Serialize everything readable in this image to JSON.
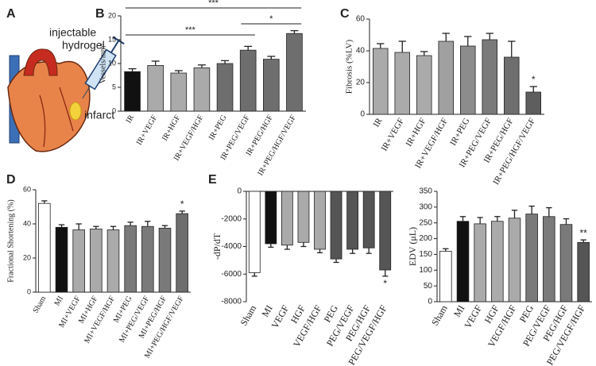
{
  "diagram": {
    "panel": "A",
    "labels": [
      "injectable",
      "hydrogel",
      "infarct"
    ]
  },
  "chart_data": [
    {
      "type": "bar",
      "panel": "B",
      "ylabel": "Vessels/mm²",
      "categories": [
        "IR",
        "IR+VEGF",
        "IR+HGF",
        "IR+VEGF/HGF",
        "IR+PEG",
        "IR+PEG/VEGF",
        "IR+PEG/HGF",
        "IR+PEG/HGF/VEGF"
      ],
      "values": [
        8.3,
        9.6,
        8.0,
        9.1,
        10.0,
        12.8,
        10.9,
        16.3
      ],
      "errors": [
        0.6,
        0.9,
        0.5,
        0.6,
        0.6,
        0.8,
        0.6,
        0.6
      ],
      "colors": [
        "#111111",
        "#aaaaaa",
        "#aaaaaa",
        "#aaaaaa",
        "#6e6e6e",
        "#6e6e6e",
        "#6e6e6e",
        "#6e6e6e"
      ],
      "ylim": [
        0,
        20
      ],
      "yticks": [
        0,
        5,
        10,
        15,
        20
      ],
      "significance": [
        {
          "label": "***",
          "from": "IR",
          "to": "IR+PEG/HGF/VEGF"
        },
        {
          "label": "***",
          "from": "IR",
          "to": "IR+PEG/VEGF"
        },
        {
          "label": "*",
          "from": "IR+PEG/VEGF",
          "to": "IR+PEG/HGF/VEGF"
        }
      ]
    },
    {
      "type": "bar",
      "panel": "C",
      "ylabel": "Fibrosis (%LV)",
      "categories": [
        "IR",
        "IR+VEGF",
        "IR+HGF",
        "IR+VEGF/HGF",
        "IR+PEG",
        "IR+PEG/VEGF",
        "IR+PEG/HGF",
        "IR+PEG/HGF/VEGF"
      ],
      "values": [
        41.5,
        39,
        37,
        46,
        43,
        47,
        36,
        14
      ],
      "errors": [
        3,
        7,
        2.5,
        5,
        6,
        4,
        10,
        3.5
      ],
      "colors": [
        "#aaaaaa",
        "#aaaaaa",
        "#aaaaaa",
        "#a0a0a0",
        "#8c8c8c",
        "#7a7a7a",
        "#6e6e6e",
        "#5e5e5e"
      ],
      "ylim": [
        0,
        60
      ],
      "yticks": [
        0,
        20,
        40,
        60
      ],
      "significance": [
        {
          "label": "*",
          "category": "IR+PEG/HGF/VEGF"
        }
      ]
    },
    {
      "type": "bar",
      "panel": "D",
      "ylabel": "Fractional Shortening (%)",
      "categories": [
        "Sham",
        "MI",
        "MI+VEGF",
        "MI+HGF",
        "MI+VEGF/HGF",
        "MI+PEG",
        "MI+PEG/VEGF",
        "MI+PEG/HGF",
        "MI+PEG/HGF/VEGF"
      ],
      "values": [
        52,
        38,
        36.5,
        37,
        36.5,
        39,
        38.5,
        37.5,
        46
      ],
      "errors": [
        1.5,
        1.5,
        3.5,
        1.5,
        2,
        2,
        3,
        1.5,
        1.5
      ],
      "colors": [
        "#ffffff",
        "#111111",
        "#aaaaaa",
        "#aaaaaa",
        "#aaaaaa",
        "#7a7a7a",
        "#7a7a7a",
        "#7a7a7a",
        "#6e6e6e"
      ],
      "ylim": [
        0,
        60
      ],
      "yticks": [
        0,
        20,
        40,
        60
      ],
      "significance": [
        {
          "label": "*",
          "category": "MI+PEG/HGF/VEGF"
        }
      ]
    },
    {
      "type": "bar",
      "panel": "E",
      "ylabel": "-dP/dT",
      "categories": [
        "Sham",
        "MI",
        "VEGF",
        "HGF",
        "VEGF/HGF",
        "PEG",
        "PEG/VEGF",
        "PEG/HGF",
        "PEG/VEGF/HGF"
      ],
      "values": [
        -5900,
        -3800,
        -3900,
        -3700,
        -4200,
        -4900,
        -4200,
        -4100,
        -5700
      ],
      "errors": [
        250,
        250,
        300,
        300,
        250,
        250,
        300,
        400,
        450
      ],
      "colors": [
        "#ffffff",
        "#111111",
        "#aaaaaa",
        "#aaaaaa",
        "#aaaaaa",
        "#555555",
        "#555555",
        "#555555",
        "#555555"
      ],
      "ylim": [
        -8000,
        0
      ],
      "yticks": [
        0,
        -2000,
        -4000,
        -6000,
        -8000
      ],
      "significance": [
        {
          "label": "*",
          "category": "PEG/VEGF/HGF"
        }
      ]
    },
    {
      "type": "bar",
      "ylabel": "EDV (μL)",
      "categories": [
        "Sham",
        "MI",
        "VEGF",
        "HGF",
        "VEGF/HGF",
        "PEG",
        "PEG/VEGF",
        "PEG/HGF",
        "PEG/VEGF/HGF"
      ],
      "values": [
        160,
        255,
        247,
        255,
        265,
        278,
        270,
        245,
        188
      ],
      "errors": [
        8,
        15,
        20,
        15,
        25,
        25,
        28,
        18,
        8
      ],
      "colors": [
        "#ffffff",
        "#111111",
        "#aaaaaa",
        "#aaaaaa",
        "#aaaaaa",
        "#7a7a7a",
        "#7a7a7a",
        "#7a7a7a",
        "#555555"
      ],
      "ylim": [
        0,
        350
      ],
      "yticks": [
        0,
        50,
        100,
        150,
        200,
        250,
        300,
        350
      ],
      "significance": [
        {
          "label": "**",
          "category": "PEG/VEGF/HGF"
        }
      ]
    }
  ]
}
